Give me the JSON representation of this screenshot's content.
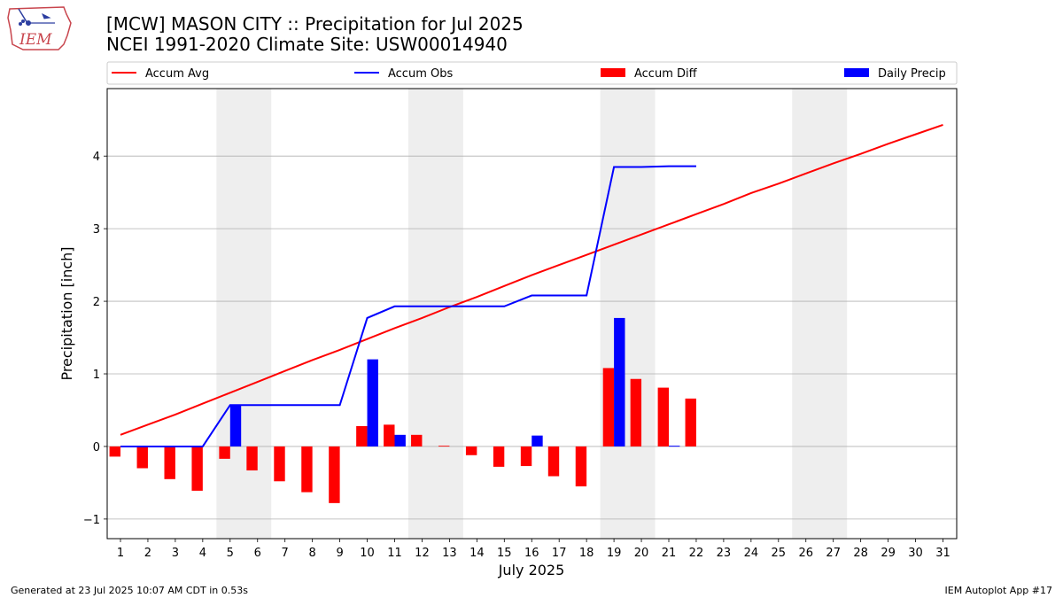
{
  "header": {
    "title_line1": "[MCW] MASON CITY :: Precipitation for Jul 2025",
    "title_line2": "NCEI 1991-2020 Climate Site: USW00014940"
  },
  "logo": {
    "text": "IEM",
    "icon": "iem-iowa-weather-logo"
  },
  "footer": {
    "left": "Generated at 23 Jul 2025 10:07 AM CDT in 0.53s",
    "right": "IEM Autoplot App #17"
  },
  "colors": {
    "accum_avg": "#ff0000",
    "accum_obs": "#0000ff",
    "accum_diff": "#ff0000",
    "daily_precip": "#0000ff",
    "weekend_shade": "#eeeeee",
    "grid": "#b0b0b0"
  },
  "chart_data": {
    "type": "bar",
    "xlabel": "July 2025",
    "ylabel": "Precipitation [inch]",
    "ylim": [
      -1.27,
      4.93
    ],
    "yticks": [
      -1,
      0,
      1,
      2,
      3,
      4
    ],
    "ytick_labels": [
      "−1",
      "0",
      "1",
      "2",
      "3",
      "4"
    ],
    "grid": "horizontal",
    "days": [
      1,
      2,
      3,
      4,
      5,
      6,
      7,
      8,
      9,
      10,
      11,
      12,
      13,
      14,
      15,
      16,
      17,
      18,
      19,
      20,
      21,
      22,
      23,
      24,
      25,
      26,
      27,
      28,
      29,
      30,
      31
    ],
    "weekends": [
      [
        5,
        6
      ],
      [
        12,
        13
      ],
      [
        19,
        20
      ],
      [
        26,
        27
      ]
    ],
    "legend": {
      "position": "top",
      "entries": [
        {
          "name": "Accum Avg",
          "kind": "line",
          "color": "#ff0000"
        },
        {
          "name": "Accum Obs",
          "kind": "line",
          "color": "#0000ff"
        },
        {
          "name": "Accum Diff",
          "kind": "bar",
          "color": "#ff0000"
        },
        {
          "name": "Daily Precip",
          "kind": "bar",
          "color": "#0000ff"
        }
      ]
    },
    "series": [
      {
        "name": "Accum Avg",
        "kind": "line",
        "values": [
          0.16,
          0.3,
          0.44,
          0.59,
          0.74,
          0.89,
          1.04,
          1.19,
          1.33,
          1.48,
          1.63,
          1.77,
          1.92,
          2.06,
          2.21,
          2.36,
          2.5,
          2.64,
          2.78,
          2.92,
          3.06,
          3.2,
          3.34,
          3.49,
          3.62,
          3.76,
          3.9,
          4.03,
          4.17,
          4.3,
          4.43
        ]
      },
      {
        "name": "Accum Obs",
        "kind": "line",
        "values": [
          0.0,
          0.0,
          0.0,
          0.0,
          0.57,
          0.57,
          0.57,
          0.57,
          0.57,
          1.77,
          1.93,
          1.93,
          1.93,
          1.93,
          1.93,
          2.08,
          2.08,
          2.08,
          3.85,
          3.85,
          3.86,
          3.86
        ]
      },
      {
        "name": "Accum Diff",
        "kind": "bar",
        "values": [
          -0.14,
          -0.3,
          -0.45,
          -0.61,
          -0.17,
          -0.33,
          -0.48,
          -0.63,
          -0.78,
          0.28,
          0.3,
          0.16,
          0.01,
          -0.12,
          -0.28,
          -0.27,
          -0.41,
          -0.55,
          1.08,
          0.93,
          0.81,
          0.66
        ]
      },
      {
        "name": "Daily Precip",
        "kind": "bar",
        "values": [
          0,
          0,
          0,
          0,
          0.57,
          0,
          0,
          0,
          0,
          1.2,
          0.16,
          0,
          0,
          0,
          0,
          0.15,
          0,
          0,
          1.77,
          0,
          0.01,
          0
        ]
      }
    ]
  }
}
